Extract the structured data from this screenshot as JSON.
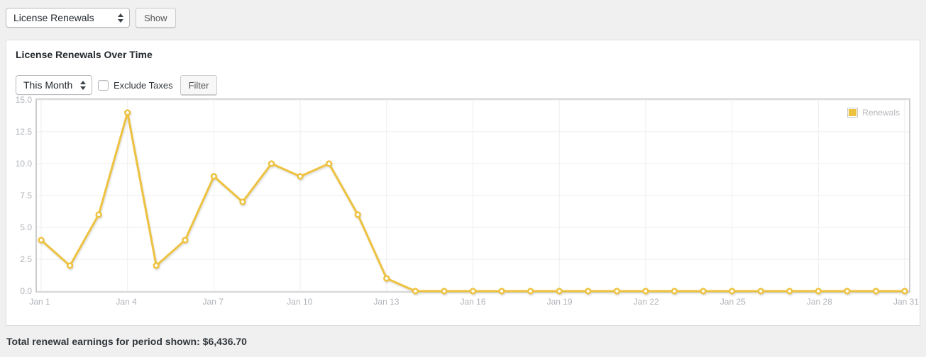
{
  "topbar": {
    "report_select_value": "License Renewals",
    "show_label": "Show"
  },
  "panel": {
    "title": "License Renewals Over Time",
    "filters": {
      "period_select_value": "This Month",
      "exclude_taxes_label": "Exclude Taxes",
      "exclude_taxes_checked": false,
      "filter_label": "Filter"
    }
  },
  "chart_data": {
    "type": "line",
    "title": "License Renewals Over Time",
    "categories": [
      "Jan 1",
      "Jan 2",
      "Jan 3",
      "Jan 4",
      "Jan 5",
      "Jan 6",
      "Jan 7",
      "Jan 8",
      "Jan 9",
      "Jan 10",
      "Jan 11",
      "Jan 12",
      "Jan 13",
      "Jan 14",
      "Jan 15",
      "Jan 16",
      "Jan 17",
      "Jan 18",
      "Jan 19",
      "Jan 20",
      "Jan 21",
      "Jan 22",
      "Jan 23",
      "Jan 24",
      "Jan 25",
      "Jan 26",
      "Jan 27",
      "Jan 28",
      "Jan 29",
      "Jan 30",
      "Jan 31"
    ],
    "series": [
      {
        "name": "Renewals",
        "color": "#edc240",
        "values": [
          4,
          2,
          6,
          14,
          2,
          4,
          9,
          7,
          10,
          9,
          10,
          6,
          1,
          0,
          0,
          0,
          0,
          0,
          0,
          0,
          0,
          0,
          0,
          0,
          0,
          0,
          0,
          0,
          0,
          0,
          0
        ]
      }
    ],
    "xlabel": "",
    "ylabel": "",
    "ylim": [
      0,
      15
    ],
    "yticks": [
      0,
      2.5,
      5,
      7.5,
      10,
      12.5,
      15
    ],
    "xtick_every": 3,
    "grid": true,
    "legend_position": "top-right",
    "marker": "open-circle"
  },
  "footer": {
    "total_label": "Total renewal earnings for period shown:",
    "total_amount": "$6,436.70"
  }
}
